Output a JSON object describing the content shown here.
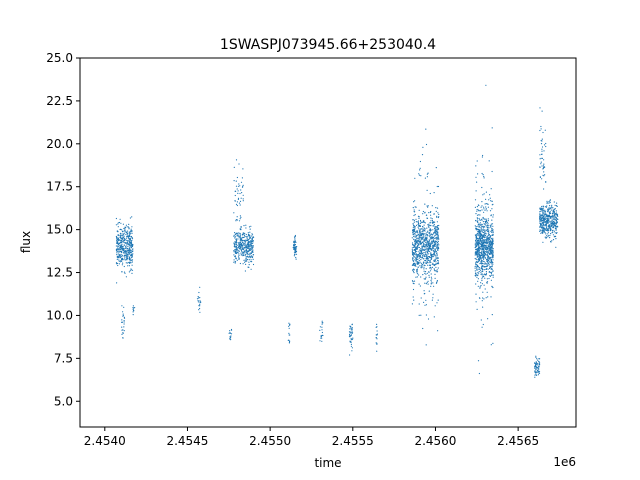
{
  "chart_data": {
    "type": "scatter",
    "title": "1SWASPJ073945.66+253040.4",
    "xlabel": "time",
    "ylabel": "flux",
    "x_offset_label": "1e6",
    "xlim": [
      2.45385,
      2.45685
    ],
    "ylim": [
      3.5,
      25.0
    ],
    "x_ticks": [
      2.454,
      2.4545,
      2.455,
      2.4555,
      2.456,
      2.4565
    ],
    "x_tick_labels": [
      "2.4540",
      "2.4545",
      "2.4550",
      "2.4555",
      "2.4560",
      "2.4565"
    ],
    "y_ticks": [
      5.0,
      7.5,
      10.0,
      12.5,
      15.0,
      17.5,
      20.0,
      22.5,
      25.0
    ],
    "y_tick_labels": [
      "5.0",
      "7.5",
      "10.0",
      "12.5",
      "15.0",
      "17.5",
      "20.0",
      "22.5",
      "25.0"
    ],
    "grid": false,
    "marker_color": "#1f77b4",
    "clusters": [
      {
        "x_range": [
          2.45407,
          2.45417
        ],
        "y_center": 14.0,
        "y_spread": 1.1,
        "n": 420
      },
      {
        "x_range": [
          2.4541,
          2.45412
        ],
        "y_center": 9.5,
        "y_spread": 0.8,
        "n": 25
      },
      {
        "x_range": [
          2.45417,
          2.45418
        ],
        "y_center": 10.3,
        "y_spread": 0.5,
        "n": 10
      },
      {
        "x_range": [
          2.45456,
          2.45458
        ],
        "y_center": 10.8,
        "y_spread": 0.8,
        "n": 18
      },
      {
        "x_range": [
          2.45475,
          2.45477
        ],
        "y_center": 9.0,
        "y_spread": 0.6,
        "n": 14
      },
      {
        "x_range": [
          2.45478,
          2.4549
        ],
        "y_center": 14.0,
        "y_spread": 0.9,
        "n": 380
      },
      {
        "x_range": [
          2.45478,
          2.45484
        ],
        "y_center": 17.0,
        "y_spread": 2.0,
        "n": 50
      },
      {
        "x_range": [
          2.45514,
          2.45516
        ],
        "y_center": 14.0,
        "y_spread": 0.5,
        "n": 60
      },
      {
        "x_range": [
          2.45511,
          2.45512
        ],
        "y_center": 9.0,
        "y_spread": 0.8,
        "n": 14
      },
      {
        "x_range": [
          2.4553,
          2.45532
        ],
        "y_center": 9.0,
        "y_spread": 0.9,
        "n": 18
      },
      {
        "x_range": [
          2.45548,
          2.4555
        ],
        "y_center": 8.6,
        "y_spread": 0.9,
        "n": 40
      },
      {
        "x_range": [
          2.45564,
          2.45565
        ],
        "y_center": 8.5,
        "y_spread": 0.8,
        "n": 14
      },
      {
        "x_range": [
          2.45586,
          2.45602
        ],
        "y_center": 14.0,
        "y_spread": 1.6,
        "n": 750
      },
      {
        "x_range": [
          2.45586,
          2.45602
        ],
        "y_center": 14.0,
        "y_spread": 5.0,
        "n": 160
      },
      {
        "x_range": [
          2.45624,
          2.45635
        ],
        "y_center": 14.0,
        "y_spread": 1.6,
        "n": 750
      },
      {
        "x_range": [
          2.45624,
          2.45635
        ],
        "y_center": 14.0,
        "y_spread": 4.8,
        "n": 160
      },
      {
        "x_range": [
          2.4566,
          2.45663
        ],
        "y_center": 7.0,
        "y_spread": 0.5,
        "n": 70
      },
      {
        "x_range": [
          2.45663,
          2.45674
        ],
        "y_center": 15.5,
        "y_spread": 0.9,
        "n": 420
      },
      {
        "x_range": [
          2.45663,
          2.45667
        ],
        "y_center": 19.0,
        "y_spread": 2.5,
        "n": 50
      }
    ]
  }
}
